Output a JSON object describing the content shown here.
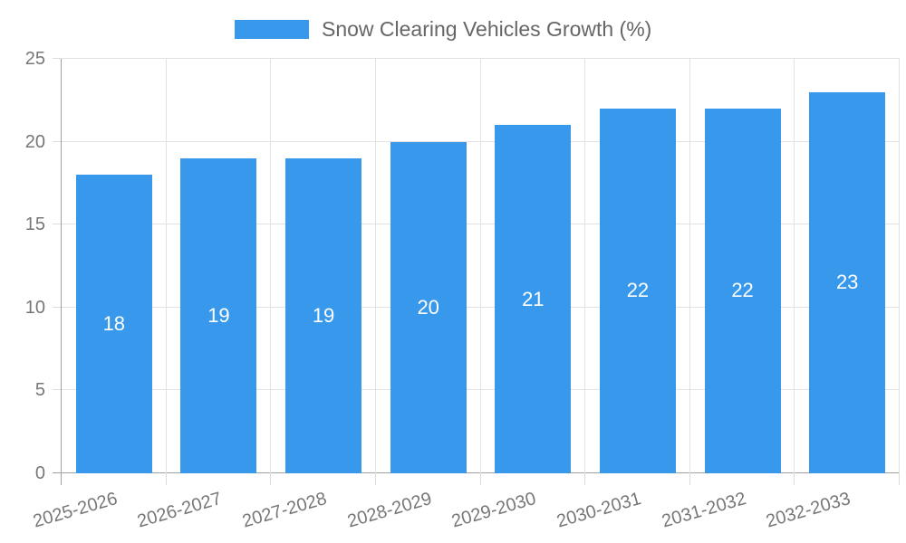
{
  "chart_data": {
    "type": "bar",
    "legend": {
      "label": "Snow Clearing Vehicles Growth (%)",
      "position": "top"
    },
    "categories": [
      "2025-2026",
      "2026-2027",
      "2027-2028",
      "2028-2029",
      "2029-2030",
      "2030-2031",
      "2031-2032",
      "2032-2033"
    ],
    "values": [
      18,
      19,
      19,
      20,
      21,
      22,
      22,
      23
    ],
    "bar_value_labels": [
      "18",
      "19",
      "19",
      "20",
      "21",
      "22",
      "22",
      "23"
    ],
    "xlabel": "",
    "ylabel": "",
    "ylim": [
      0,
      25
    ],
    "yticks": [
      0,
      5,
      10,
      15,
      20,
      25
    ],
    "grid": true,
    "x_label_rotation_deg": -16,
    "colors": {
      "bar": "#3898ec",
      "grid": "#e2e2e2",
      "axis_border": "#a0a0a0",
      "tick_mark": "#dcdcdc",
      "tick_label_text": "#777777",
      "legend_text": "#666666",
      "bar_label_text": "#ffffff",
      "background": "#ffffff"
    }
  }
}
